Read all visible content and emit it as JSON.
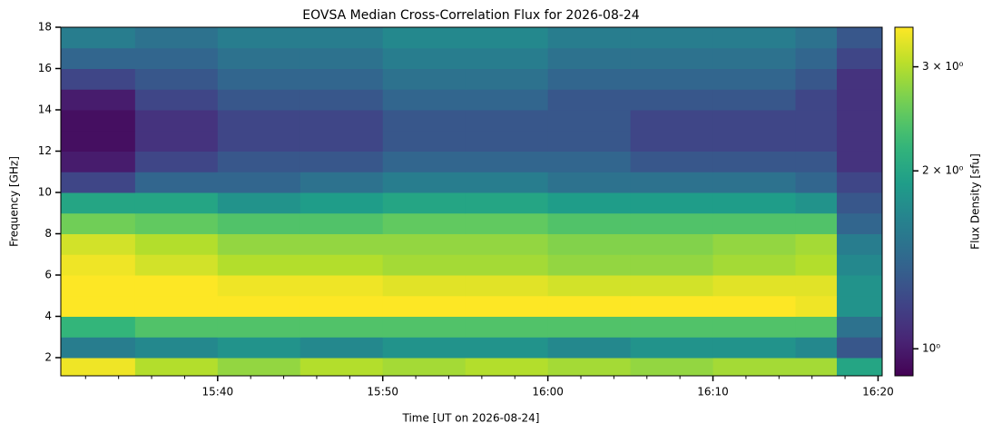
{
  "chart_data": {
    "type": "heatmap",
    "title": "EOVSA Median Cross-Correlation Flux for 2026-08-24",
    "xlabel": "Time [UT on 2026-08-24]",
    "ylabel": "Frequency [GHz]",
    "xlim": [
      "15:30:30",
      "16:20:15"
    ],
    "xticks": [
      "15:40",
      "15:50",
      "16:00",
      "16:10",
      "16:20"
    ],
    "xminorticks": [
      "15:32",
      "15:34",
      "15:36",
      "15:38",
      "15:42",
      "15:44",
      "15:46",
      "15:48",
      "15:52",
      "15:54",
      "15:56",
      "15:58",
      "16:02",
      "16:04",
      "16:06",
      "16:08",
      "16:12",
      "16:14",
      "16:16",
      "16:18"
    ],
    "ylim": [
      1.12,
      18
    ],
    "yticks": [
      2,
      4,
      6,
      8,
      10,
      12,
      14,
      16,
      18
    ],
    "x_edges": [
      "15:30:30",
      "15:35",
      "15:40",
      "15:45",
      "15:50",
      "15:55",
      "16:00",
      "16:05",
      "16:10",
      "16:15",
      "16:17:30",
      "16:20:15"
    ],
    "y_edges": [
      1.12,
      2,
      3,
      4,
      5,
      6,
      7,
      8,
      9,
      10,
      11,
      12,
      13,
      14,
      15,
      16,
      17,
      18
    ],
    "values": [
      [
        3.4,
        3.0,
        2.8,
        3.0,
        2.9,
        3.0,
        2.9,
        2.8,
        2.9,
        2.9,
        2.0
      ],
      [
        1.6,
        1.7,
        1.8,
        1.7,
        1.8,
        1.8,
        1.7,
        1.8,
        1.8,
        1.7,
        1.3
      ],
      [
        2.2,
        2.4,
        2.4,
        2.4,
        2.4,
        2.4,
        2.4,
        2.4,
        2.4,
        2.4,
        1.5
      ],
      [
        3.5,
        3.5,
        3.5,
        3.5,
        3.5,
        3.5,
        3.5,
        3.5,
        3.5,
        3.4,
        1.8
      ],
      [
        3.5,
        3.5,
        3.4,
        3.4,
        3.3,
        3.3,
        3.2,
        3.2,
        3.3,
        3.3,
        1.8
      ],
      [
        3.4,
        3.2,
        3.0,
        3.0,
        2.9,
        2.9,
        2.8,
        2.8,
        2.9,
        3.0,
        1.7
      ],
      [
        3.2,
        3.0,
        2.8,
        2.8,
        2.8,
        2.8,
        2.7,
        2.7,
        2.8,
        2.9,
        1.6
      ],
      [
        2.6,
        2.5,
        2.4,
        2.4,
        2.5,
        2.5,
        2.4,
        2.4,
        2.4,
        2.4,
        1.4
      ],
      [
        2.0,
        2.0,
        1.8,
        1.9,
        2.0,
        2.0,
        1.9,
        1.9,
        1.9,
        1.8,
        1.3
      ],
      [
        1.2,
        1.4,
        1.4,
        1.5,
        1.6,
        1.6,
        1.5,
        1.5,
        1.5,
        1.4,
        1.2
      ],
      [
        1.0,
        1.2,
        1.3,
        1.3,
        1.4,
        1.4,
        1.4,
        1.3,
        1.3,
        1.3,
        1.1
      ],
      [
        0.95,
        1.1,
        1.2,
        1.2,
        1.3,
        1.3,
        1.3,
        1.2,
        1.2,
        1.2,
        1.1
      ],
      [
        0.95,
        1.1,
        1.2,
        1.2,
        1.3,
        1.3,
        1.3,
        1.2,
        1.2,
        1.2,
        1.1
      ],
      [
        1.0,
        1.2,
        1.3,
        1.3,
        1.4,
        1.4,
        1.3,
        1.3,
        1.3,
        1.2,
        1.1
      ],
      [
        1.2,
        1.3,
        1.4,
        1.4,
        1.5,
        1.5,
        1.4,
        1.4,
        1.4,
        1.3,
        1.1
      ],
      [
        1.4,
        1.4,
        1.5,
        1.5,
        1.6,
        1.6,
        1.5,
        1.5,
        1.5,
        1.4,
        1.2
      ],
      [
        1.6,
        1.5,
        1.6,
        1.6,
        1.7,
        1.7,
        1.6,
        1.6,
        1.6,
        1.5,
        1.3
      ]
    ],
    "colorbar": {
      "label": "Flux Density [sfu]",
      "scale": "log",
      "colormap": "viridis",
      "lim": [
        0.9,
        3.5
      ],
      "ticks": [
        {
          "value": 1,
          "label": "10⁰"
        },
        {
          "value": 2,
          "label": "2 × 10⁰"
        },
        {
          "value": 3,
          "label": "3 × 10⁰"
        }
      ]
    }
  }
}
